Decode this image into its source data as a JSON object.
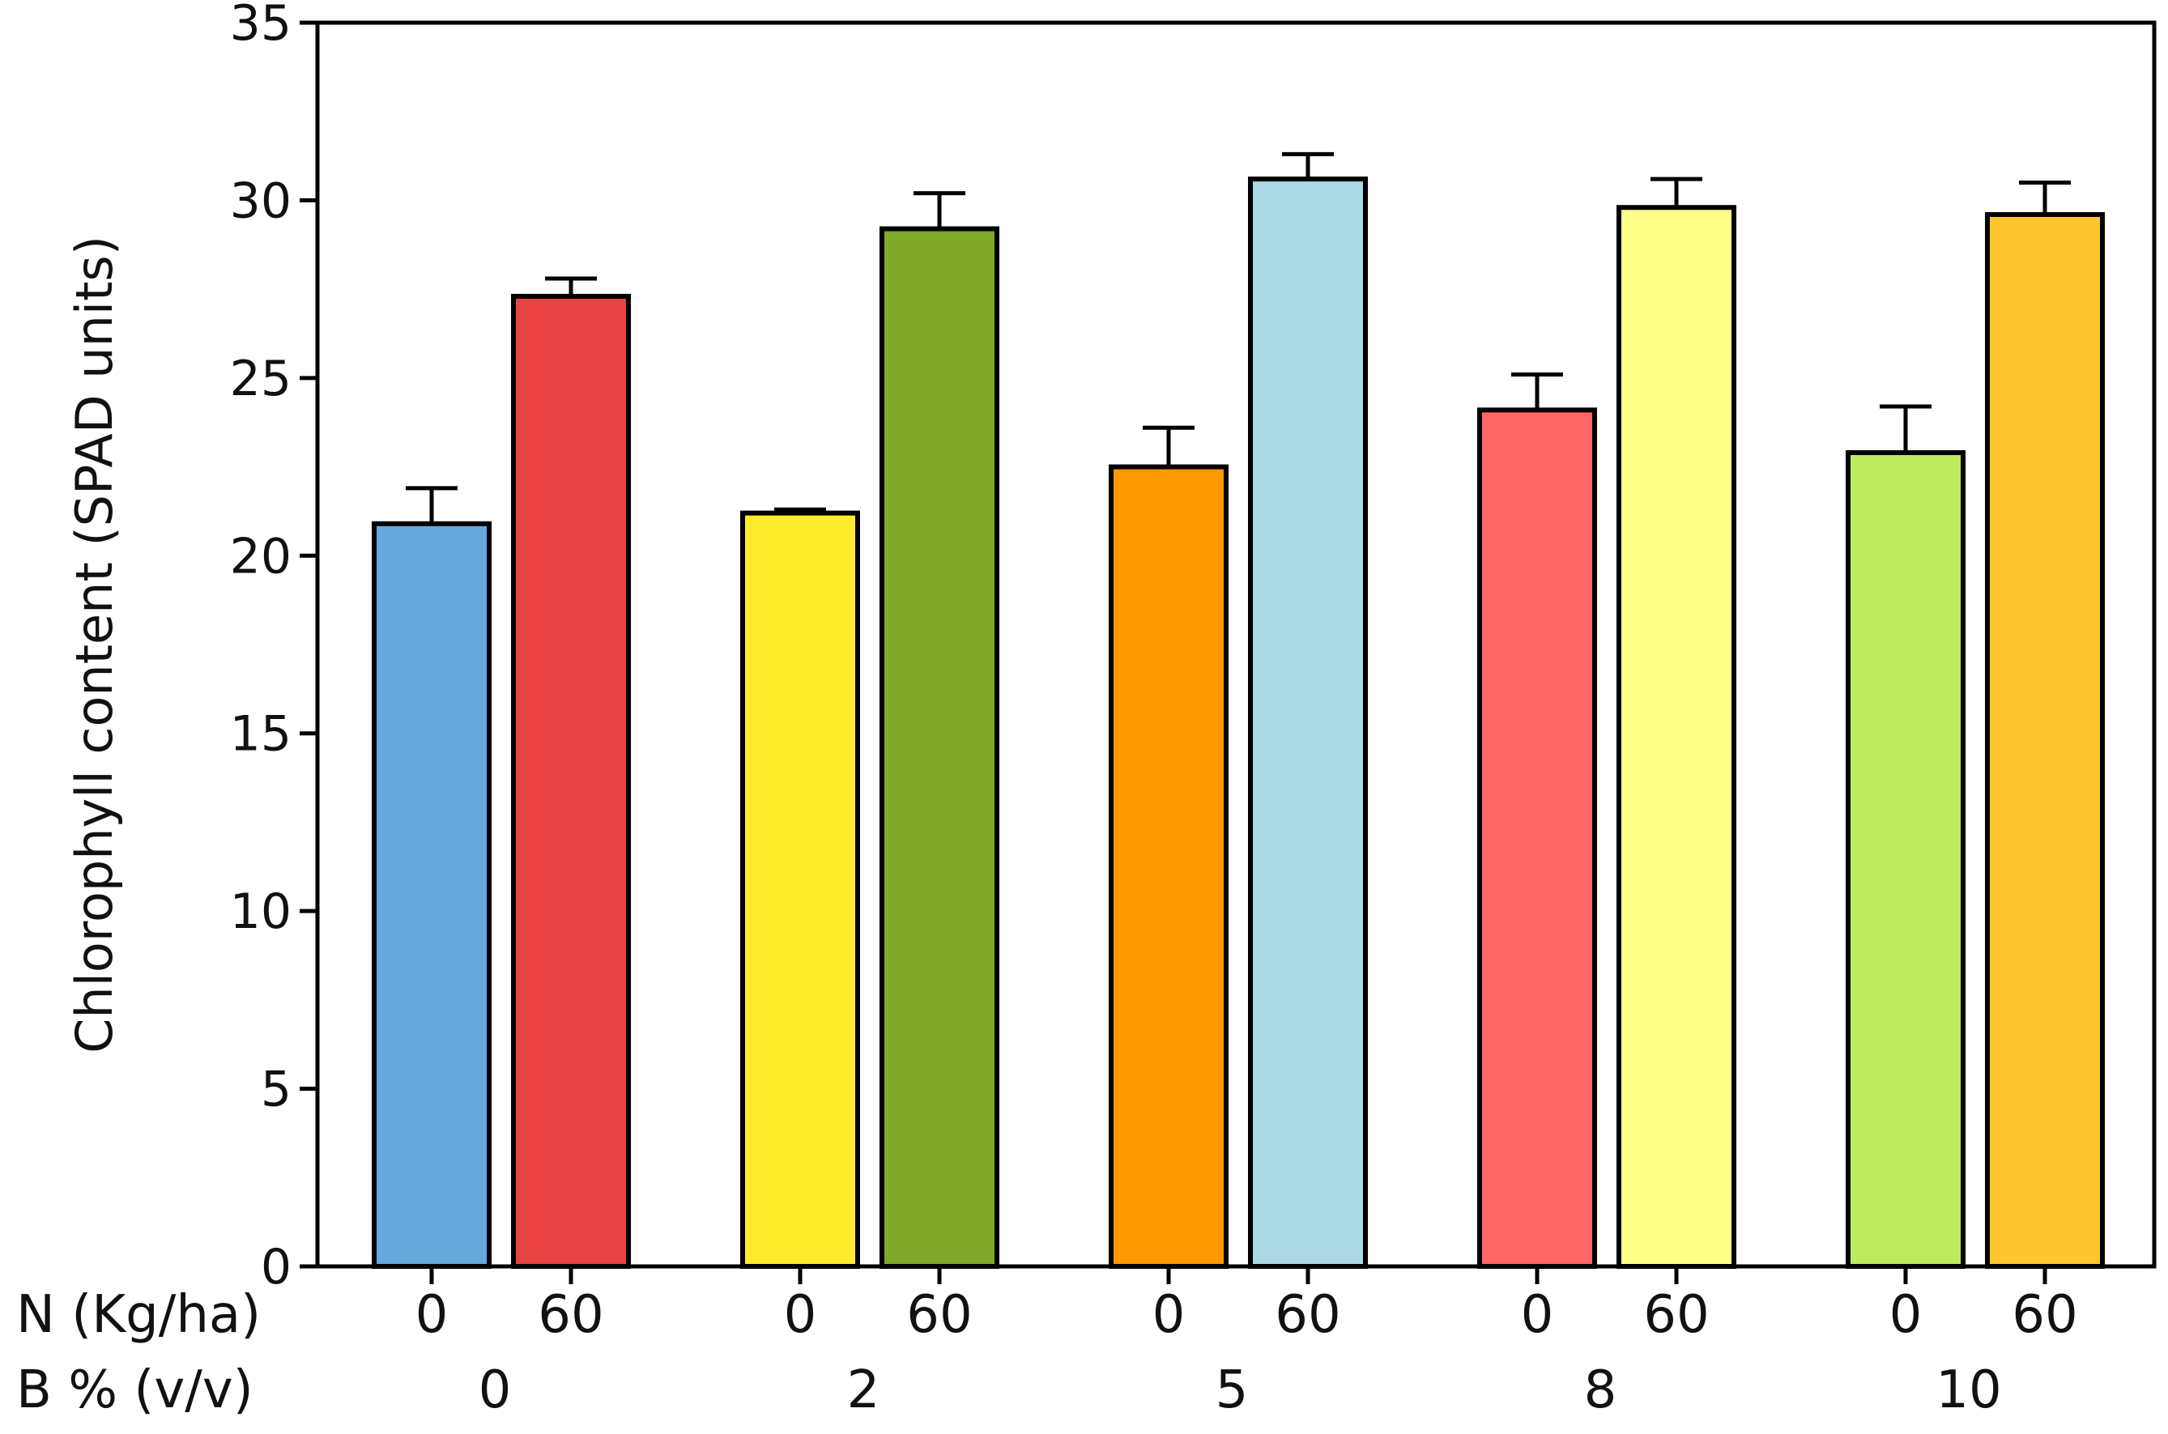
{
  "chart_data": {
    "type": "bar",
    "title": "",
    "ylabel": "Chlorophyll content (SPAD units)",
    "ylim": [
      0,
      35
    ],
    "yticks": [
      0,
      5,
      10,
      15,
      20,
      25,
      30,
      35
    ],
    "row_labels": {
      "n": "N (Kg/ha)",
      "b": "B % (v/v)"
    },
    "groups": [
      {
        "b": "0",
        "bars": [
          {
            "n": "0",
            "value": 20.9,
            "error": 1.0,
            "color": "#66A9DC"
          },
          {
            "n": "60",
            "value": 27.3,
            "error": 0.5,
            "color": "#E84242"
          }
        ]
      },
      {
        "b": "2",
        "bars": [
          {
            "n": "0",
            "value": 21.2,
            "error": 0.1,
            "color": "#FFEB2C"
          },
          {
            "n": "60",
            "value": 29.2,
            "error": 1.0,
            "color": "#80A829"
          }
        ]
      },
      {
        "b": "5",
        "bars": [
          {
            "n": "0",
            "value": 22.5,
            "error": 1.1,
            "color": "#FF9800"
          },
          {
            "n": "60",
            "value": 30.6,
            "error": 0.7,
            "color": "#ADD8E6"
          }
        ]
      },
      {
        "b": "8",
        "bars": [
          {
            "n": "0",
            "value": 24.1,
            "error": 1.0,
            "color": "#FF6666"
          },
          {
            "n": "60",
            "value": 29.8,
            "error": 0.8,
            "color": "#FFFF88"
          }
        ]
      },
      {
        "b": "10",
        "bars": [
          {
            "n": "0",
            "value": 22.9,
            "error": 1.3,
            "color": "#BEEA5F"
          },
          {
            "n": "60",
            "value": 29.6,
            "error": 0.9,
            "color": "#FFC72E"
          }
        ]
      }
    ]
  }
}
